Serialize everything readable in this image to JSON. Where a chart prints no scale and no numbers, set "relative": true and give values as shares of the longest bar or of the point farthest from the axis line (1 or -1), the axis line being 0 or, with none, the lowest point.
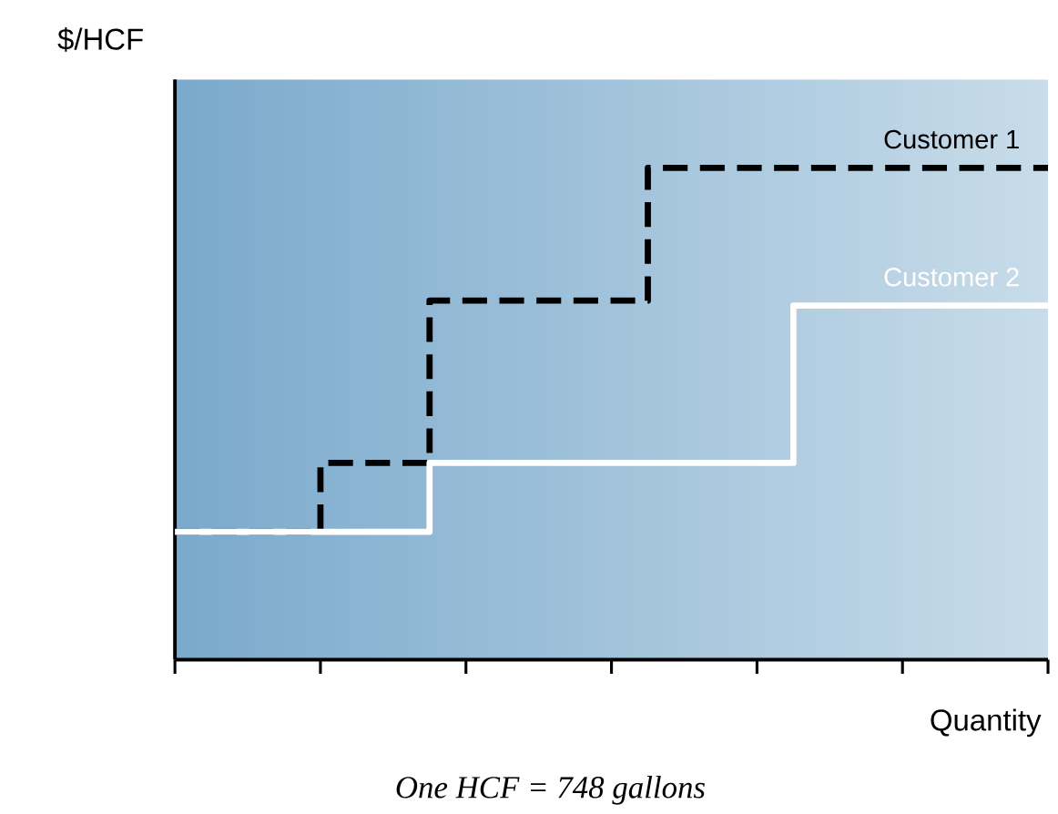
{
  "chart_data": {
    "type": "step",
    "relative": true,
    "ylabel": "$/HCF",
    "xlabel": "Quantity",
    "annotations": [
      "One HCF = 748 gallons"
    ],
    "categories": [
      null,
      null,
      null,
      null,
      null,
      null,
      null,
      null,
      null,
      null,
      null,
      null,
      null,
      null,
      null,
      null,
      null,
      null,
      null,
      null,
      null,
      null,
      null,
      null,
      null
    ],
    "series": [
      {
        "name": "Customer 1",
        "color": "#000000",
        "line_style": "dashed",
        "values": [
          0.26,
          0.26,
          0.26,
          0.26,
          0.4,
          0.4,
          0.4,
          0.73,
          0.73,
          0.73,
          0.73,
          0.73,
          0.73,
          1,
          1,
          1,
          1,
          1,
          1,
          1,
          1,
          1,
          1,
          1,
          1
        ]
      },
      {
        "name": "Customer 2",
        "color": "#ffffff",
        "line_style": "solid",
        "values": [
          0.26,
          0.26,
          0.26,
          0.26,
          0.26,
          0.26,
          0.26,
          0.4,
          0.4,
          0.4,
          0.4,
          0.4,
          0.4,
          0.4,
          0.4,
          0.4,
          0.4,
          0.72,
          0.72,
          0.72,
          0.72,
          0.72,
          0.72,
          0.72,
          0.72
        ]
      }
    ],
    "marker": "none"
  }
}
